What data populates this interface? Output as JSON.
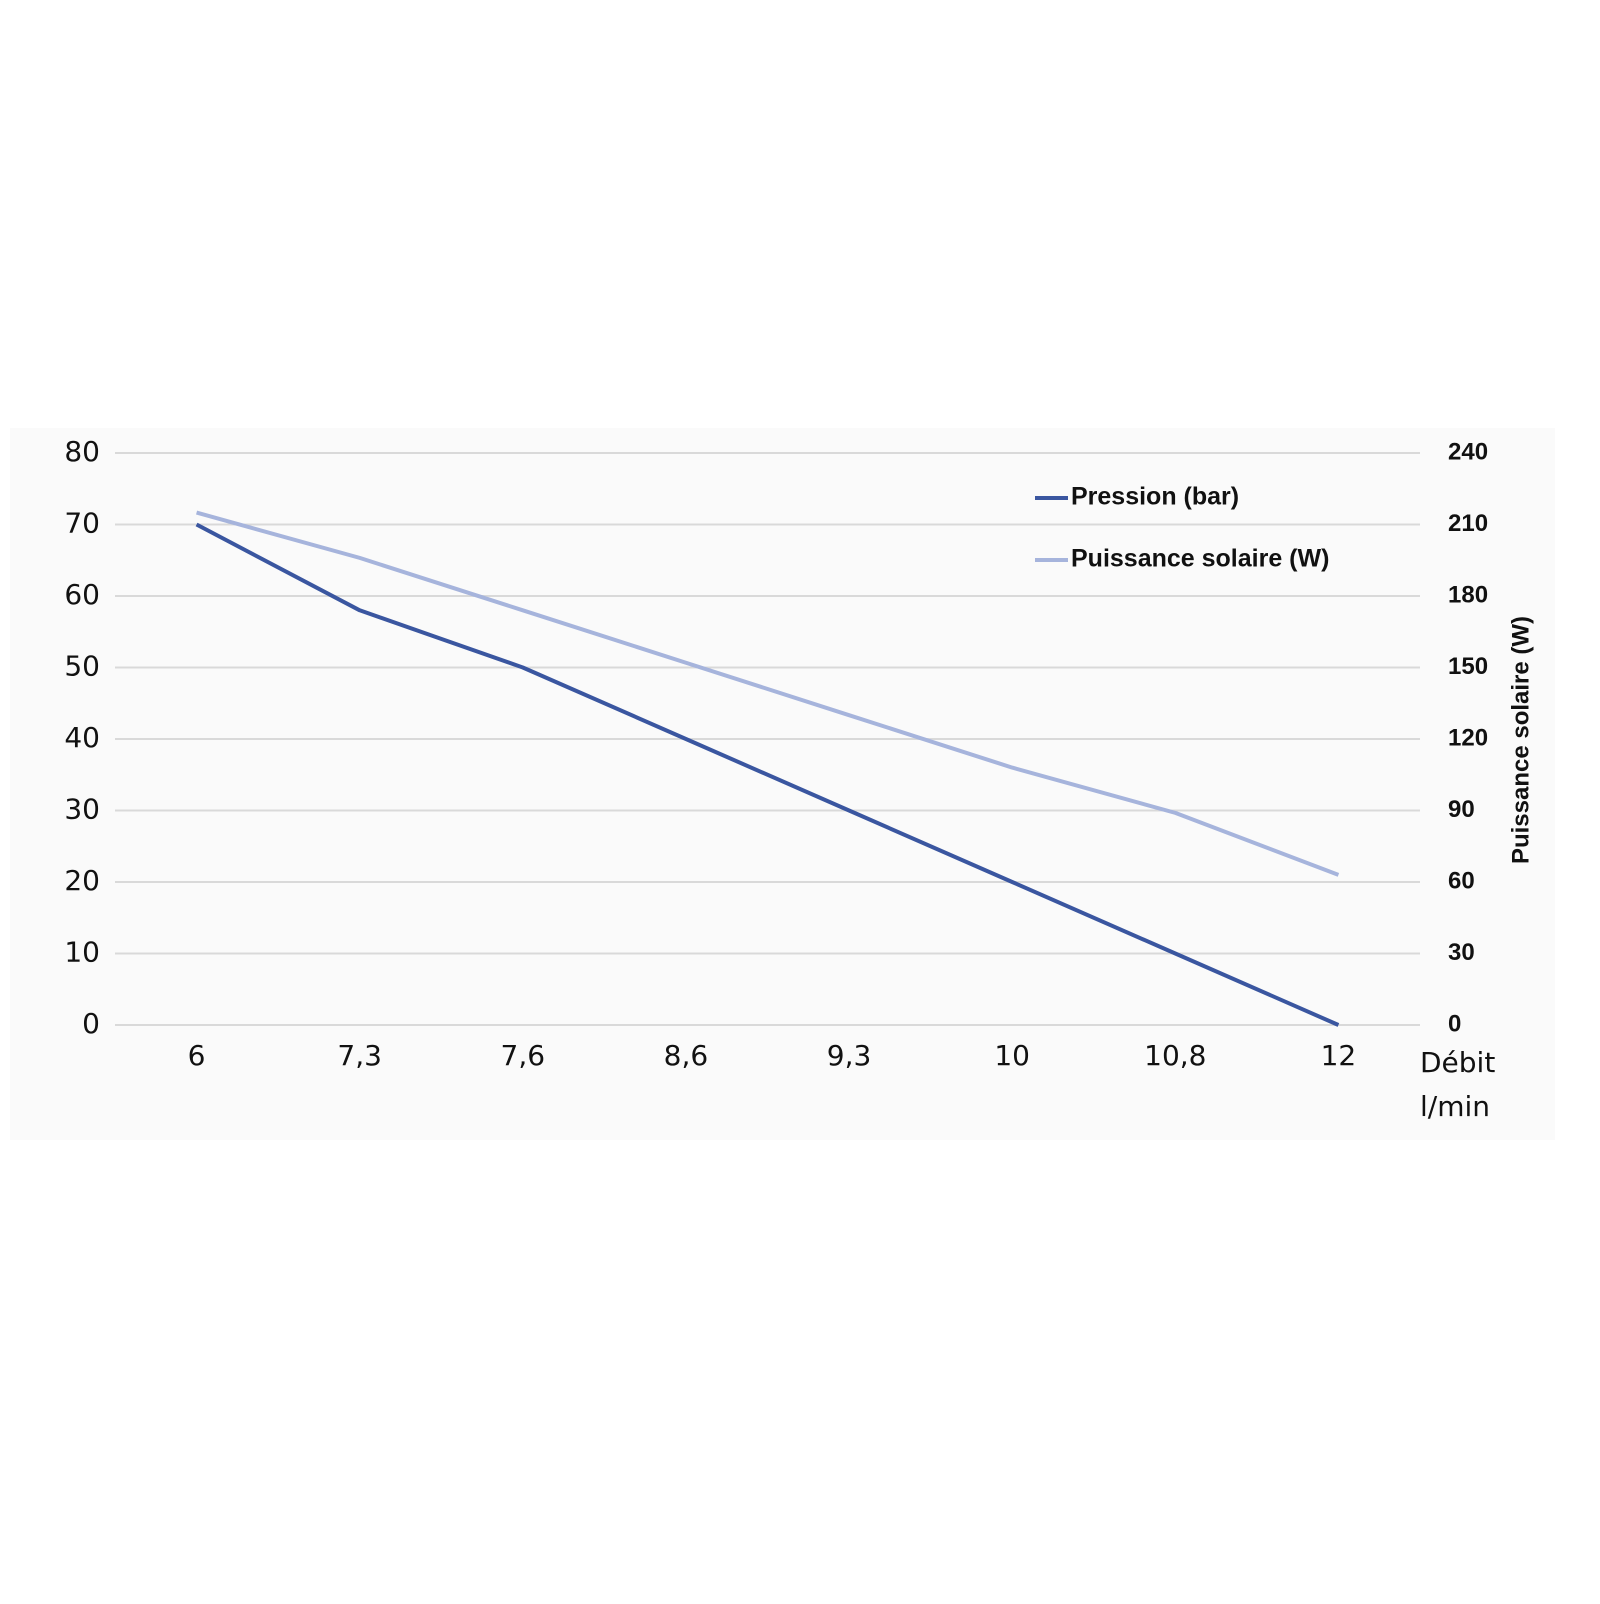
{
  "chart_data": {
    "type": "line",
    "categories": [
      "6",
      "7,3",
      "7,6",
      "8,6",
      "9,3",
      "10",
      "10,8",
      "12"
    ],
    "xlabel_lines": [
      "Débit",
      "l/min"
    ],
    "y2label": "Puissance solaire (W)",
    "series": [
      {
        "name": "Pression (bar)",
        "color": "#3a56a0",
        "values": [
          70,
          58,
          50,
          40,
          30,
          20,
          10,
          0
        ]
      },
      {
        "name": "Puissance solaire (W)",
        "color": "#a6b4dc",
        "axis": "y2",
        "values": [
          215,
          196,
          174,
          152,
          130,
          108,
          89,
          63
        ]
      }
    ],
    "ylim": [
      0,
      80
    ],
    "yticks": [
      0,
      10,
      20,
      30,
      40,
      50,
      60,
      70,
      80
    ],
    "y2lim": [
      0,
      240
    ],
    "y2ticks": [
      0,
      30,
      60,
      90,
      120,
      150,
      180,
      210,
      240
    ],
    "grid": true,
    "legend": "top-right"
  }
}
